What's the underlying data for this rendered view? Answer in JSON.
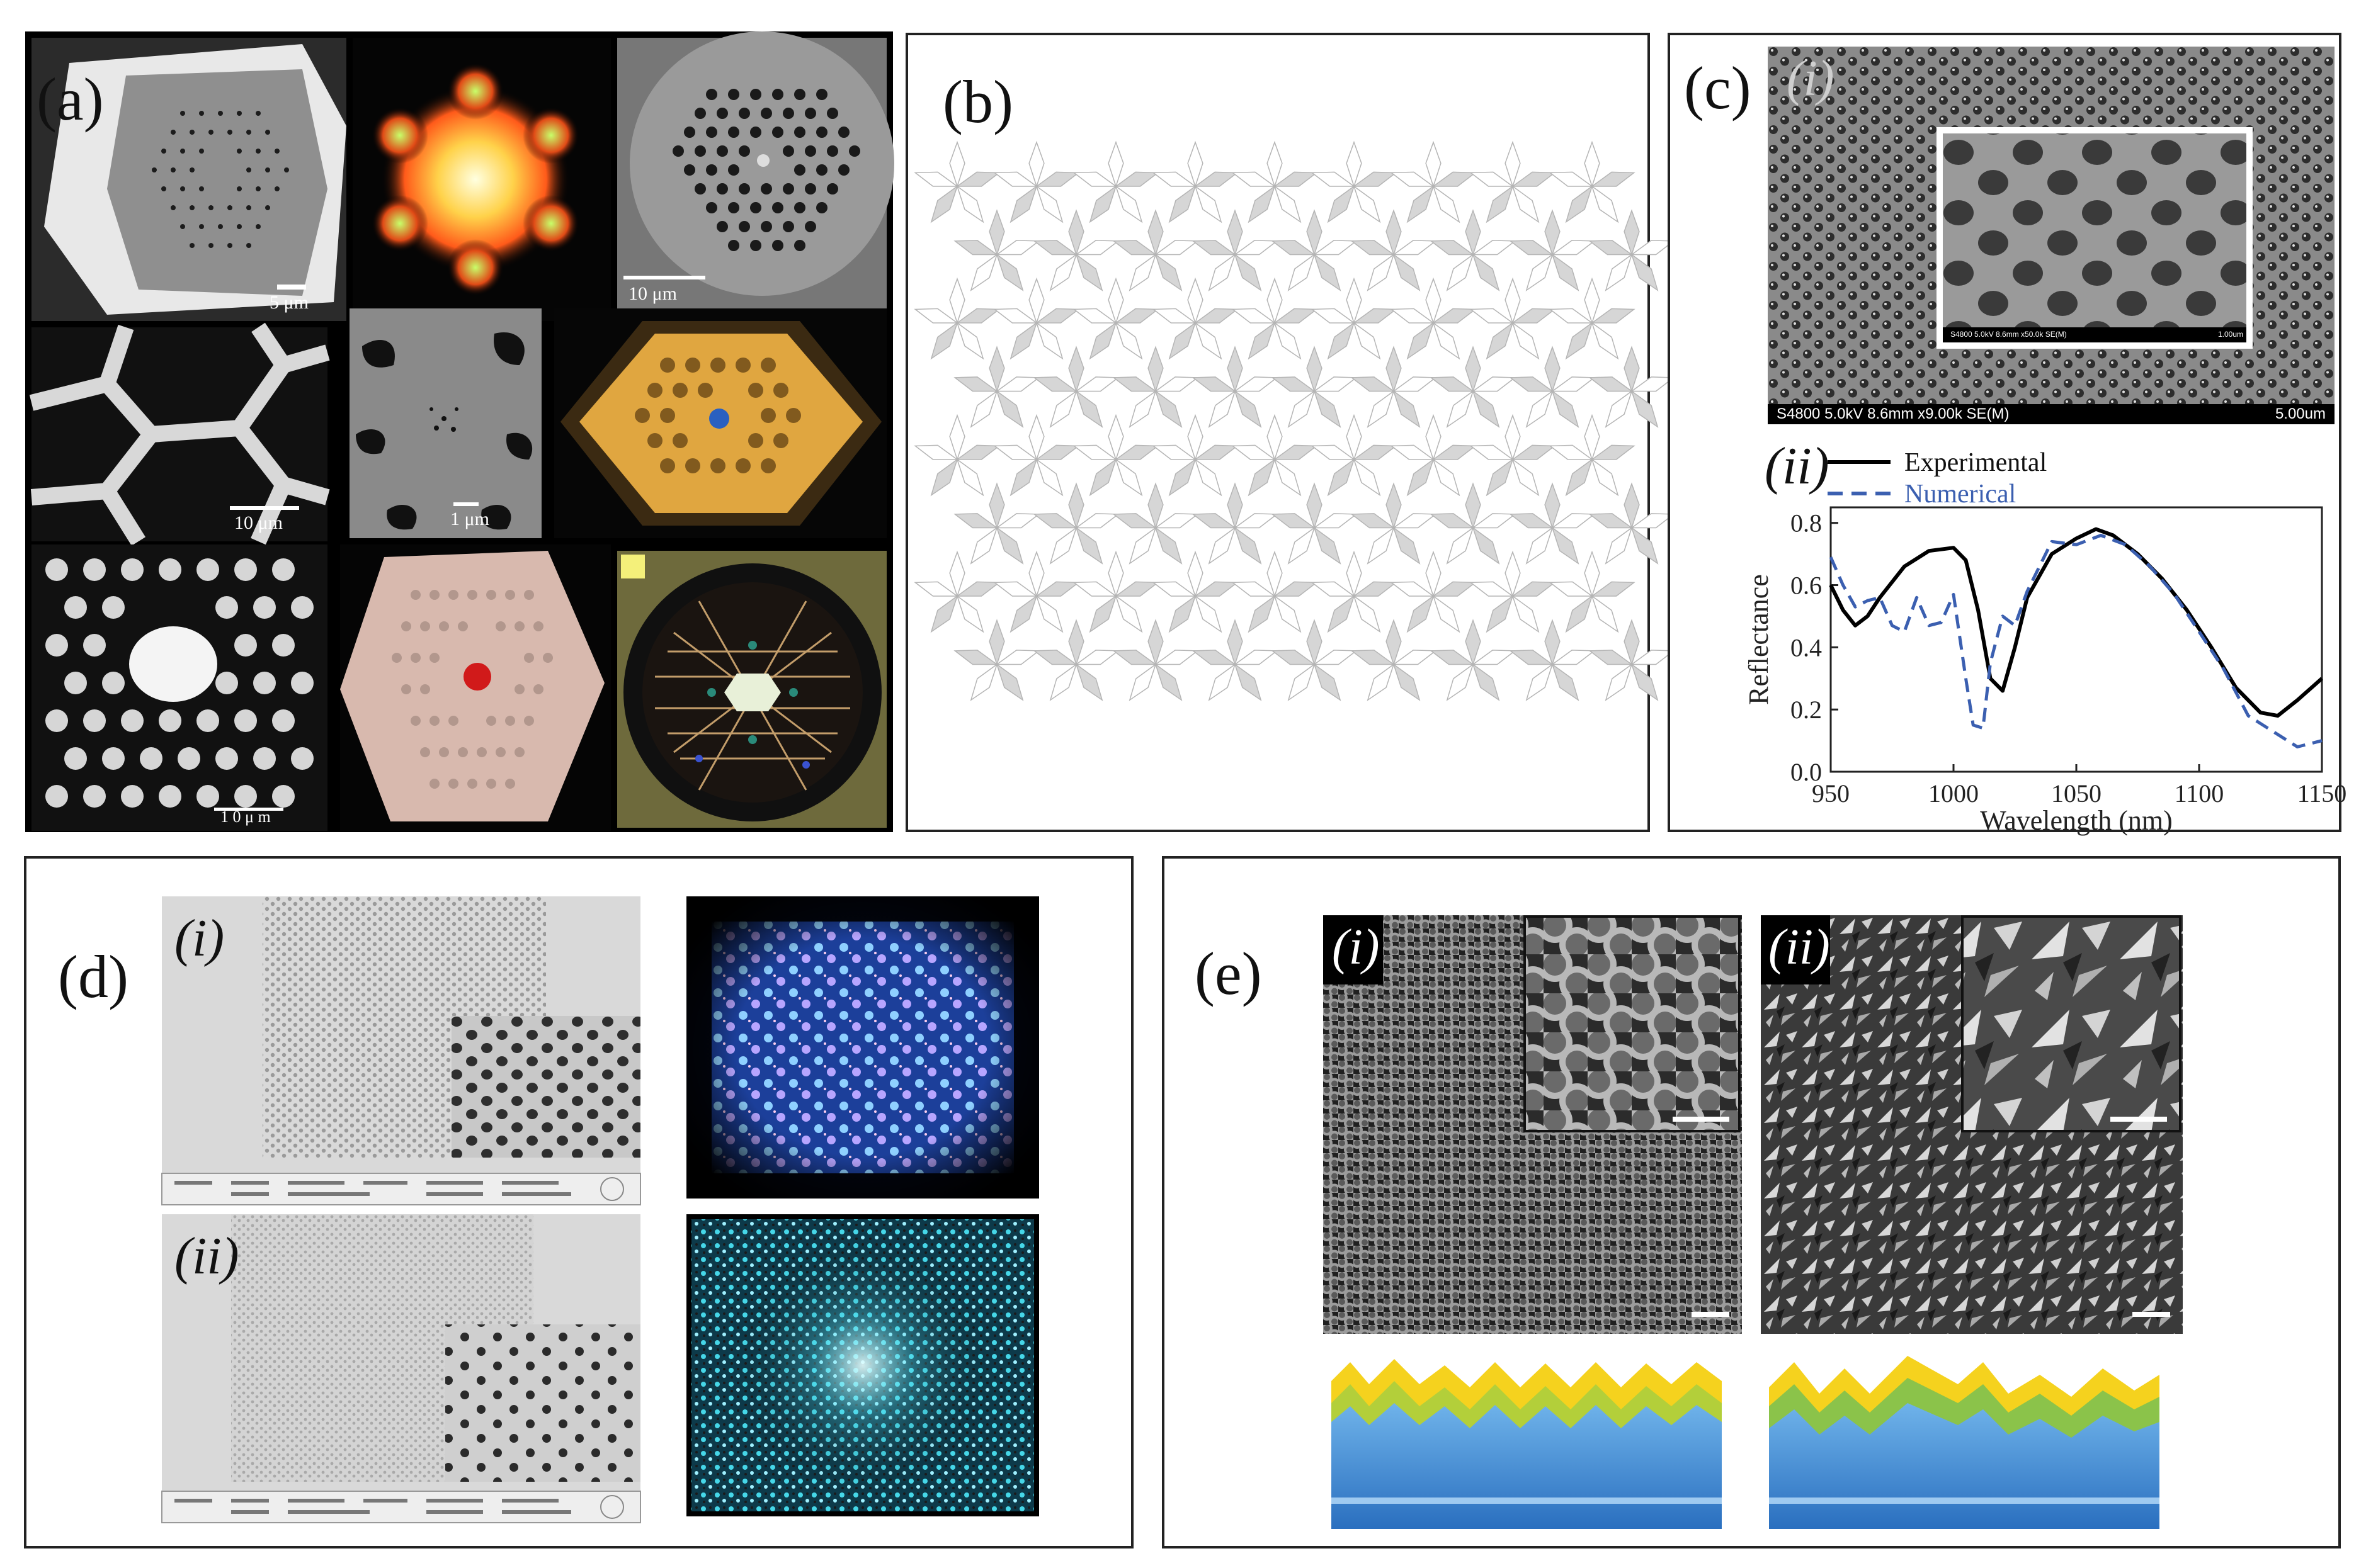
{
  "panels": {
    "a": {
      "label": "(a)",
      "scales": [
        "5 μm",
        "10 μm",
        "10 μm",
        "1 μm",
        "1 0 μ m"
      ]
    },
    "b": {
      "label": "(b)"
    },
    "c": {
      "label": "(c)",
      "sub_i": "(i)",
      "sub_ii": "(ii)",
      "sem_bar_left": "S4800 5.0kV 8.6mm x9.00k SE(M)",
      "sem_bar_right": "5.00um",
      "inset_bar_left": "S4800 5.0kV 8.6mm x50.0k SE(M)",
      "inset_bar_right": "1.00um"
    },
    "d": {
      "label": "(d)",
      "sub_i": "(i)",
      "sub_ii": "(ii)"
    },
    "e": {
      "label": "(e)",
      "sub_i": "(i)",
      "sub_ii": "(ii)"
    }
  },
  "chart_data": {
    "type": "line",
    "xlabel": "Wavelength (nm)",
    "ylabel": "Reflectance",
    "xlim": [
      950,
      1150
    ],
    "ylim": [
      0.0,
      0.85
    ],
    "xticks": [
      950,
      1000,
      1050,
      1100,
      1150
    ],
    "yticks": [
      0.0,
      0.2,
      0.4,
      0.6,
      0.8
    ],
    "xtick_labels": [
      "950",
      "1000",
      "1050",
      "1100",
      "1150"
    ],
    "ytick_labels": [
      "0.0",
      "0.2",
      "0.4",
      "0.6",
      "0.8"
    ],
    "legend_position": "top",
    "series": [
      {
        "name": "Experimental",
        "color": "#000000",
        "style": "solid",
        "x": [
          950,
          955,
          960,
          965,
          970,
          980,
          990,
          1000,
          1005,
          1010,
          1015,
          1020,
          1025,
          1030,
          1040,
          1050,
          1058,
          1065,
          1075,
          1085,
          1095,
          1105,
          1115,
          1125,
          1132,
          1140,
          1150
        ],
        "y": [
          0.6,
          0.52,
          0.47,
          0.5,
          0.56,
          0.66,
          0.71,
          0.72,
          0.68,
          0.52,
          0.3,
          0.26,
          0.4,
          0.56,
          0.7,
          0.75,
          0.78,
          0.76,
          0.7,
          0.62,
          0.52,
          0.4,
          0.27,
          0.19,
          0.18,
          0.23,
          0.3
        ]
      },
      {
        "name": "Numerical",
        "color": "#3b5fb0",
        "style": "dashed",
        "x": [
          950,
          955,
          960,
          965,
          970,
          975,
          980,
          985,
          990,
          995,
          1000,
          1005,
          1008,
          1012,
          1015,
          1020,
          1025,
          1030,
          1040,
          1050,
          1060,
          1070,
          1080,
          1090,
          1100,
          1110,
          1120,
          1130,
          1140,
          1150
        ],
        "y": [
          0.69,
          0.6,
          0.53,
          0.55,
          0.56,
          0.47,
          0.45,
          0.56,
          0.47,
          0.48,
          0.57,
          0.3,
          0.15,
          0.14,
          0.35,
          0.5,
          0.47,
          0.58,
          0.74,
          0.73,
          0.76,
          0.73,
          0.66,
          0.57,
          0.45,
          0.33,
          0.18,
          0.13,
          0.08,
          0.1
        ]
      }
    ]
  },
  "colors": {
    "sem_gray": "#7d7d7d",
    "penrose_fill": "#d6d6d6",
    "numerical_blue": "#3b5fb0",
    "layer_yellow": "#f5d21e",
    "layer_green": "#8bc34a",
    "layer_blue": "#2f79c8"
  }
}
